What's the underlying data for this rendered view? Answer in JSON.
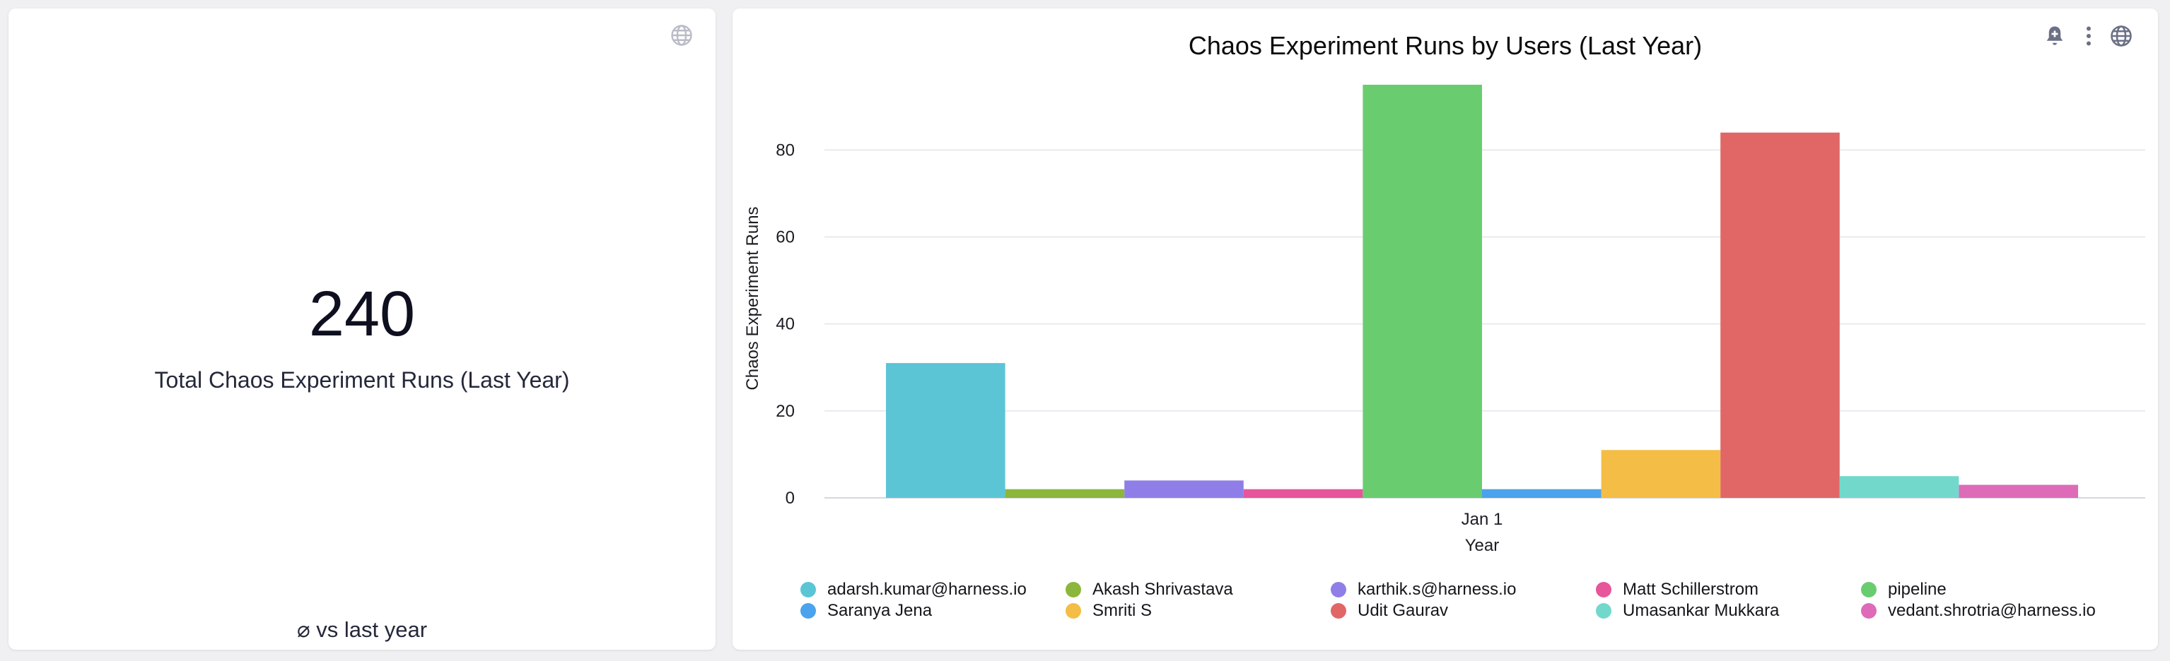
{
  "kpi": {
    "value": "240",
    "label": "Total Chaos Experiment Runs (Last Year)",
    "comparison": "⌀ vs last year"
  },
  "icons": {
    "kpi_globe": "globe-icon",
    "alert": "bell-plus-icon",
    "more": "more-vertical-icon",
    "chart_globe": "globe-icon"
  },
  "chart_data": {
    "type": "bar",
    "title": "Chaos Experiment Runs by Users (Last Year)",
    "xlabel": "Year",
    "ylabel": "Chaos Experiment Runs",
    "categories": [
      "Jan 1"
    ],
    "ylim": [
      0,
      95
    ],
    "yticks": [
      0,
      20,
      40,
      60,
      80
    ],
    "grid": true,
    "legend_position": "bottom",
    "series": [
      {
        "name": "adarsh.kumar@harness.io",
        "color": "#5bc5d5",
        "values": [
          31
        ]
      },
      {
        "name": "Akash Shrivastava",
        "color": "#8cb63c",
        "values": [
          2
        ]
      },
      {
        "name": "karthik.s@harness.io",
        "color": "#8f7ee8",
        "values": [
          4
        ]
      },
      {
        "name": "Matt Schillerstrom",
        "color": "#e7559a",
        "values": [
          2
        ]
      },
      {
        "name": "pipeline",
        "color": "#69cd70",
        "values": [
          95
        ]
      },
      {
        "name": "Saranya Jena",
        "color": "#4aa3ec",
        "values": [
          2
        ]
      },
      {
        "name": "Smriti S",
        "color": "#f4bd45",
        "values": [
          11
        ]
      },
      {
        "name": "Udit Gaurav",
        "color": "#e06766",
        "values": [
          84
        ]
      },
      {
        "name": "Umasankar Mukkara",
        "color": "#73d8cc",
        "values": [
          5
        ]
      },
      {
        "name": "vedant.shrotria@harness.io",
        "color": "#dd6bb8",
        "values": [
          3
        ]
      }
    ]
  }
}
